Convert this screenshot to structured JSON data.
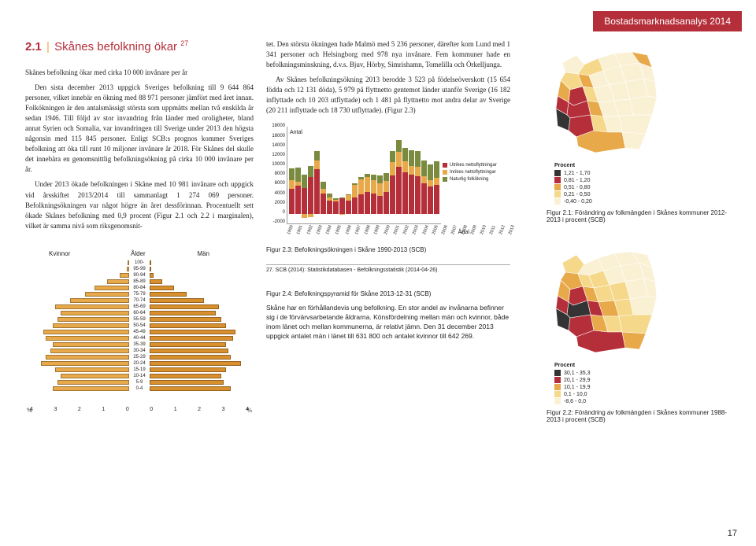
{
  "banner": "Bostadsmarknadsanalys 2014",
  "section": {
    "num": "2.1",
    "title": "Skånes befolkning ökar",
    "sup": "27"
  },
  "left_paras": [
    "Skånes befolkning ökar med cirka 10 000 invånare per år",
    "Den sista december 2013 uppgick Sveriges befolkning till 9 644 864 personer, vilket innebär en ökning med 88 971 personer jämfört med året innan. Folkökningen är den antalsmässigt största som uppmätts mellan två enskilda år sedan 1946. Till följd av stor invandring från länder med oroligheter, bland annat Syrien och Somalia, var invandringen till Sverige under 2013 den högsta någonsin med 115 845 personer. Enligt SCB:s prognos kommer Sveriges befolkning att öka till runt 10 miljoner invånare år 2018. För Skånes del skulle det innebära en genomsnittlig befolkningsökning på cirka 10 000 invånare per år.",
    "Under 2013 ökade befolkningen i Skåne med 10 981 invånare och uppgick vid årsskiftet 2013/2014 till sammanlagt 1 274 069 personer. Befolkningsökningen var något högre än året dessförinnan. Procentuellt sett ökade Skånes befolkning med 0,9 procent (Figur 2.1 och 2.2 i marginalen), vilket är samma nivå som riksgenomsnit-"
  ],
  "mid_paras": [
    "tet. Den största ökningen hade Malmö med 5 236 personer, därefter kom Lund med 1 341 personer och Helsingborg med 978 nya invånare. Fem kommuner hade en befolkningsminskning, d.v.s. Bjuv, Hörby, Simrishamn, Tomelilla och Örkelljunga.",
    "Av Skånes befolkningsökning 2013 berodde 3 523 på födelseöverskott (15 654 födda och 12 131 döda), 5 979 på flyttnetto gentemot länder utanför Sverige (16 182 inflyttade och 10 203 utflyttade) och 1 481 på flyttnetto mot andra delar av Sverige (20 211 inflyttade och 18 730 utflyttade). (Figur 2.3)"
  ],
  "barchart": {
    "antal_label": "Antal",
    "artal_label": "Årtal",
    "ylabels": [
      "18000",
      "16000",
      "14000",
      "12000",
      "10000",
      "8000",
      "6000",
      "4000",
      "2000",
      "0",
      "-2000"
    ],
    "years": [
      "1990",
      "1991",
      "1992",
      "1993",
      "1994",
      "1995",
      "1996",
      "1997",
      "1998",
      "1999",
      "2000",
      "2001",
      "2002",
      "2003",
      "2004",
      "2005",
      "2006",
      "2007",
      "2008",
      "2009",
      "2010",
      "2011",
      "2012",
      "2013"
    ],
    "series": {
      "natur": {
        "label": "Naturlig folkökning",
        "color": "#7a8a3e",
        "values": [
          2500,
          2900,
          2700,
          2400,
          2000,
          1400,
          800,
          400,
          200,
          100,
          300,
          500,
          700,
          1200,
          1500,
          1700,
          2200,
          2500,
          2800,
          3100,
          3300,
          3200,
          3300,
          3523
        ]
      },
      "inrikes": {
        "label": "Inrikes nettoflyttningar",
        "color": "#e8a94a",
        "values": [
          1800,
          900,
          -800,
          -600,
          1800,
          1000,
          600,
          300,
          -200,
          1200,
          2500,
          3200,
          3000,
          2800,
          2600,
          2200,
          2800,
          3000,
          2300,
          1800,
          1900,
          1400,
          1300,
          1481
        ]
      },
      "utrikes": {
        "label": "Utrikes nettoflyttningar",
        "color": "#b52f3a",
        "values": [
          5200,
          5800,
          5400,
          7600,
          9200,
          4200,
          2800,
          2600,
          3200,
          2800,
          3500,
          4000,
          4600,
          4200,
          3800,
          4600,
          8000,
          9800,
          8600,
          8200,
          7800,
          6400,
          5700,
          5979
        ]
      }
    },
    "ymax": 18000,
    "ymin": -2000,
    "caption": "Figur 2.3:  Befolkningsökningen i Skåne 1990-2013 (SCB)"
  },
  "footnote": "27. SCB (2014): Statistikdatabasen - Befolkningsstatistik (2014-04-26)",
  "pyramid": {
    "kvinnor": "Kvinnor",
    "man": "Män",
    "alder": "Ålder",
    "pct": "%",
    "ages": [
      "100-",
      "95-99",
      "90-94",
      "85-89",
      "80-84",
      "75-79",
      "70-74",
      "65-69",
      "60-64",
      "55-59",
      "50-54",
      "45-49",
      "40-44",
      "35-39",
      "30-34",
      "25-29",
      "20-24",
      "15-19",
      "10-14",
      "5-9",
      "0-4"
    ],
    "female": [
      0.05,
      0.1,
      0.4,
      0.9,
      1.4,
      1.8,
      2.4,
      3.0,
      2.8,
      2.9,
      3.1,
      3.5,
      3.4,
      3.1,
      3.2,
      3.4,
      3.6,
      3.0,
      2.8,
      2.9,
      3.1
    ],
    "male": [
      0.01,
      0.03,
      0.15,
      0.5,
      1.0,
      1.5,
      2.2,
      2.8,
      2.7,
      2.9,
      3.1,
      3.5,
      3.4,
      3.1,
      3.2,
      3.3,
      3.7,
      3.1,
      2.9,
      3.0,
      3.3
    ],
    "color_f": "#e8a94a",
    "color_m": "#d88f2e",
    "axis": [
      "4",
      "3",
      "2",
      "1",
      "0",
      "0",
      "1",
      "2",
      "3",
      "4"
    ],
    "scale": 4
  },
  "fig24": {
    "caption": "Figur 2.4: Befolkningspyramid för Skåne 2013-12-31 (SCB)",
    "text": "Skåne har en förhållandevis ung befolkning. En stor andel av invånarna befinner sig i de förvärvsarbetande åldrarna. Könsfördelning mellan män och kvinnor, både inom länet och mellan kommunerna, är relativt jämn. Den 31 december 2013 uppgick antalet män i länet till 631 800 och antalet kvinnor till 642 269."
  },
  "map1": {
    "legend_title": "Procent",
    "items": [
      {
        "c": "#343434",
        "l": "1,21 - 1,70"
      },
      {
        "c": "#b52f3a",
        "l": "0,81 - 1,20"
      },
      {
        "c": "#e8a94a",
        "l": "0,51 - 0,80"
      },
      {
        "c": "#f5d88a",
        "l": "0,21 - 0,50"
      },
      {
        "c": "#faf0d4",
        "l": "-0,40 - 0,20"
      }
    ],
    "caption": "Figur 2.1:  Förändring av folkmängden i Skånes kommuner 2012-2013 i procent (SCB)"
  },
  "map2": {
    "legend_title": "Procent",
    "items": [
      {
        "c": "#343434",
        "l": "30,1 - 35,3"
      },
      {
        "c": "#b52f3a",
        "l": "20,1 - 29,9"
      },
      {
        "c": "#e8a94a",
        "l": "10,1 - 19,9"
      },
      {
        "c": "#f5d88a",
        "l": "0,1 - 10,0"
      },
      {
        "c": "#faf0d4",
        "l": "-8,6 - 0,0"
      }
    ],
    "caption": "Figur 2.2:  Förändring av folkmängden i Skånes kommuner 1988-2013 i procent (SCB)"
  },
  "page_num": "17"
}
